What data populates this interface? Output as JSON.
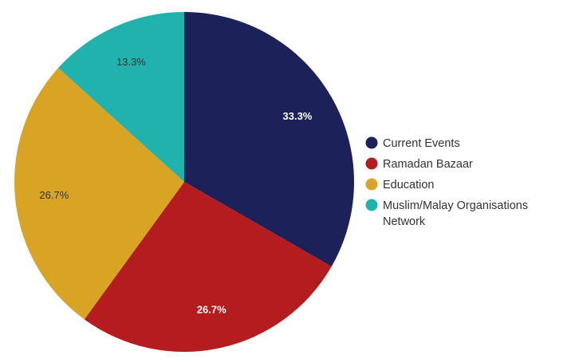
{
  "chart_data": {
    "type": "pie",
    "categories": [
      "Current Events",
      "Ramadan Bazaar",
      "Education",
      "Muslim/Malay Organisations Network"
    ],
    "values": [
      33.3,
      26.7,
      26.7,
      13.3
    ],
    "data_labels": [
      "33.3%",
      "26.7%",
      "26.7%",
      "13.3%"
    ],
    "colors": [
      "#1c2259",
      "#b51c1f",
      "#d9a424",
      "#22b2ad"
    ],
    "label_colors": [
      "#ffffff",
      "#ffffff",
      "#333333",
      "#333333"
    ],
    "legend_position": "right",
    "start_angle_deg": 0,
    "direction": "clockwise"
  }
}
